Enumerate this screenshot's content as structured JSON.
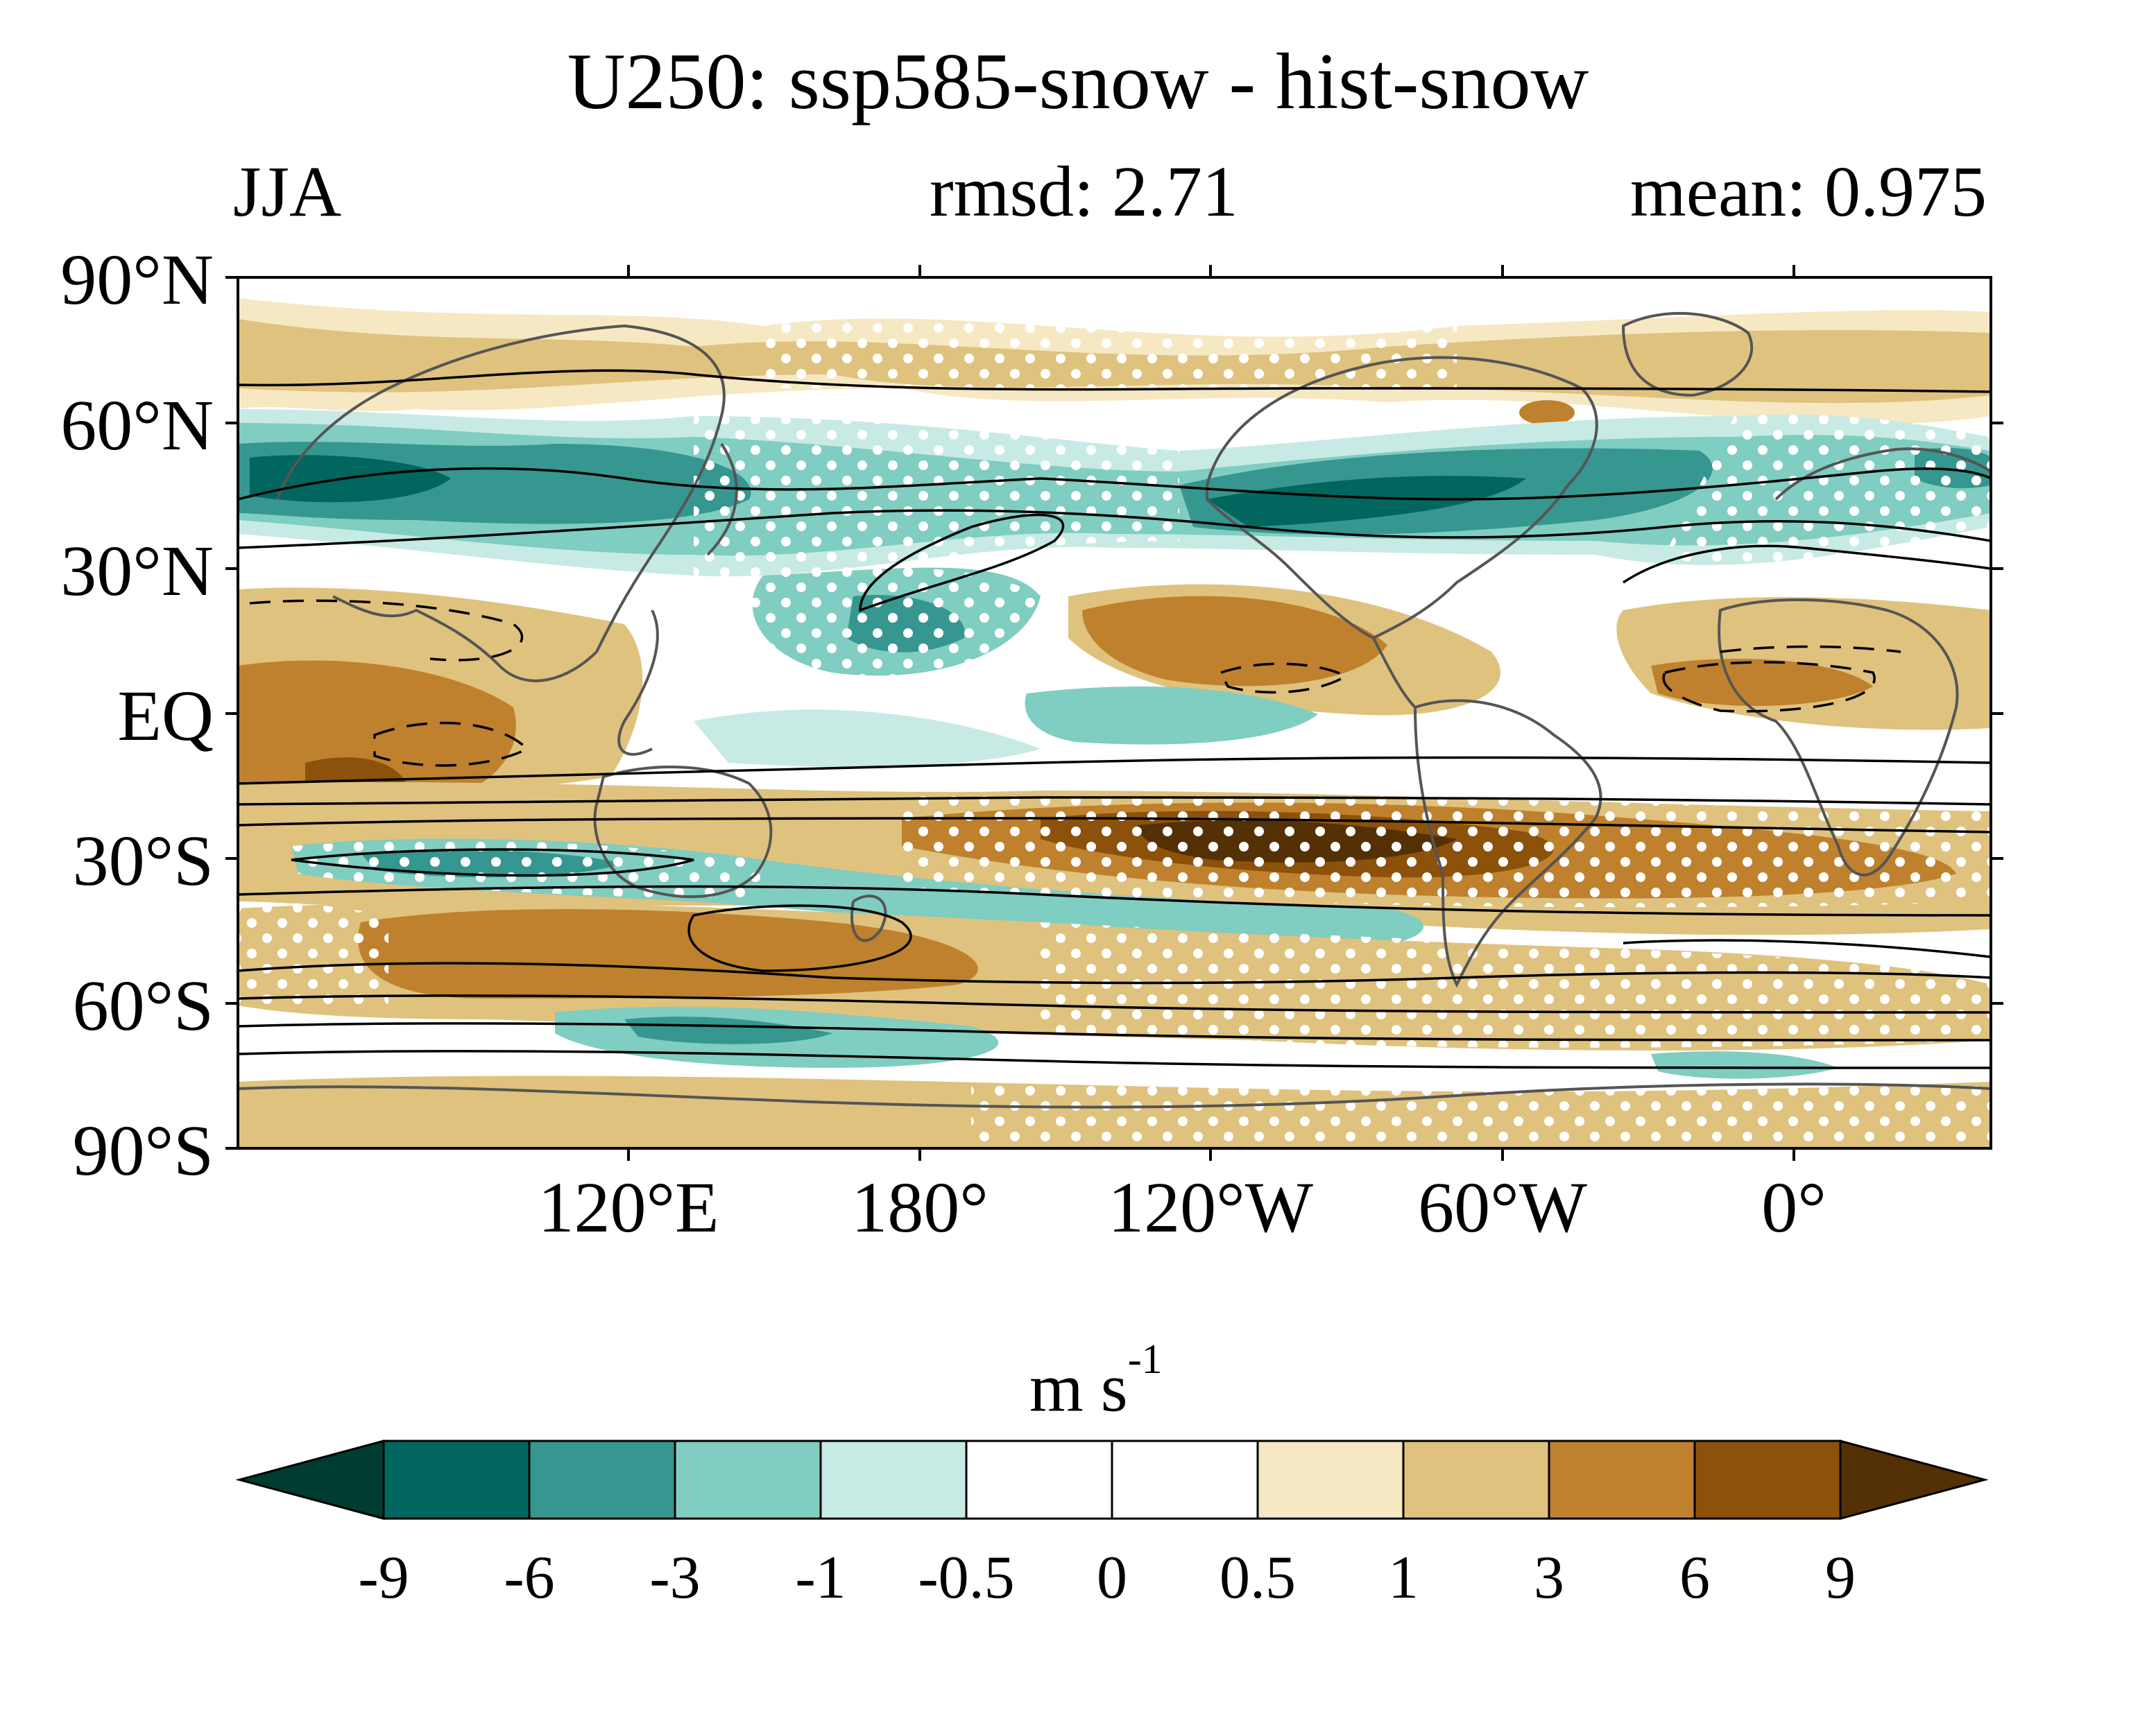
{
  "title": "U250: ssp585-snow - hist-snow",
  "subtitle": {
    "season": "JJA",
    "rmsd": "rmsd: 2.71",
    "mean": "mean: 0.975"
  },
  "lat_ticks": [
    "90°N",
    "60°N",
    "30°N",
    "EQ",
    "30°S",
    "60°S",
    "90°S"
  ],
  "lon_ticks": [
    "120°E",
    "180°",
    "120°W",
    "60°W",
    "0°"
  ],
  "colorbar": {
    "units_base": "m s",
    "units_exp": "-1",
    "labels": [
      "-9",
      "-6",
      "-3",
      "-1",
      "-0.5",
      "0",
      "0.5",
      "1",
      "3",
      "6",
      "9"
    ],
    "colors": [
      "#003c30",
      "#01665e",
      "#35978f",
      "#80cdc1",
      "#c7eae5",
      "#ffffff",
      "#ffffff",
      "#f6e8c3",
      "#dfc27d",
      "#bf812d",
      "#8c510a",
      "#543005"
    ]
  }
}
